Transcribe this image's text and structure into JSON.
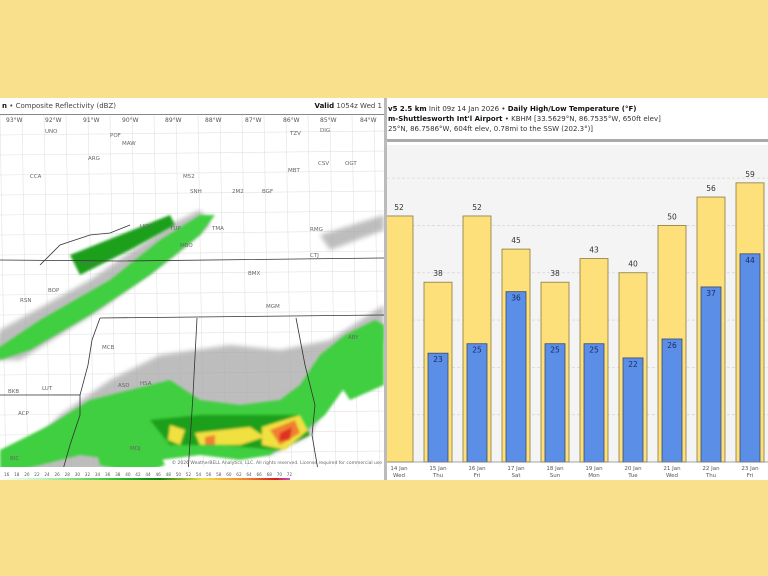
{
  "map": {
    "title_prefix": "n",
    "title": "Composite Reflectivity (dBZ)",
    "valid_label": "Valid",
    "valid_value": "1054z Wed 1",
    "longitude_labels": [
      "93°W",
      "92°W",
      "91°W",
      "90°W",
      "89°W",
      "88°W",
      "87°W",
      "86°W",
      "85°W",
      "84°W"
    ],
    "stations": [
      "UNO",
      "POF",
      "MAW",
      "TZV",
      "DIG",
      "ARG",
      "CCA",
      "M52",
      "MBT",
      "CSV",
      "OGT",
      "SNH",
      "2M2",
      "BGF",
      "UOX",
      "TUP",
      "TMA",
      "MBO",
      "GLH",
      "BOP",
      "RSN",
      "MCB",
      "BMX",
      "LUT",
      "CTJ",
      "RMG",
      "ABY",
      "MDJ",
      "BIC",
      "ASD",
      "HSA",
      "MGM",
      "ACP",
      "BKB",
      "DLN"
    ],
    "copyright": "© 2026 WeatherBELL Analytics, LLC. All rights reserved. License required for commercial use",
    "scale_labels": [
      "16",
      "18",
      "20",
      "22",
      "24",
      "26",
      "28",
      "30",
      "32",
      "34",
      "36",
      "38",
      "40",
      "42",
      "44",
      "46",
      "48",
      "50",
      "52",
      "54",
      "56",
      "58",
      "60",
      "62",
      "64",
      "66",
      "68",
      "70",
      "72"
    ],
    "colors": {
      "light_rain": "#3fcf3f",
      "moderate": "#1ea01e",
      "heavy": "#f0e040",
      "intense": "#f08030",
      "severe": "#e03020",
      "cloud": "#9a9a9a"
    }
  },
  "chart_header": {
    "line1_model": "v5 2.5 km",
    "line1_init": "Init 09z 14 Jan 2026",
    "line1_title": "Daily High/Low Temperature (°F)",
    "line2_station": "m-Shuttlesworth Int'l Airport",
    "line2_detail": "KBHM [33.5629°N, 86.7535°W, 650ft elev]",
    "line3": "25°N, 86.7586°W, 604ft elev, 0.78mi to the SSW (202.3°)]"
  },
  "chart_data": {
    "type": "bar",
    "title": "Daily High/Low Temperature (°F)",
    "categories": [
      "14 Jan",
      "15 Jan",
      "16 Jan",
      "17 Jan",
      "18 Jan",
      "19 Jan",
      "20 Jan",
      "21 Jan",
      "22 Jan",
      "23 Jan"
    ],
    "weekdays": [
      "Wed",
      "Thu",
      "Fri",
      "Sat",
      "Sun",
      "Mon",
      "Tue",
      "Wed",
      "Thu",
      "Fri"
    ],
    "series": [
      {
        "key": "high",
        "values": [
          52,
          38,
          52,
          45,
          38,
          43,
          40,
          50,
          56,
          59
        ],
        "color": "#fde07a"
      },
      {
        "key": "low",
        "values": [
          null,
          23,
          25,
          36,
          25,
          25,
          22,
          26,
          37,
          44
        ],
        "color": "#5b8ee6"
      }
    ],
    "ylim": [
      0,
      67
    ],
    "grid": true,
    "gridline_step": 10
  }
}
